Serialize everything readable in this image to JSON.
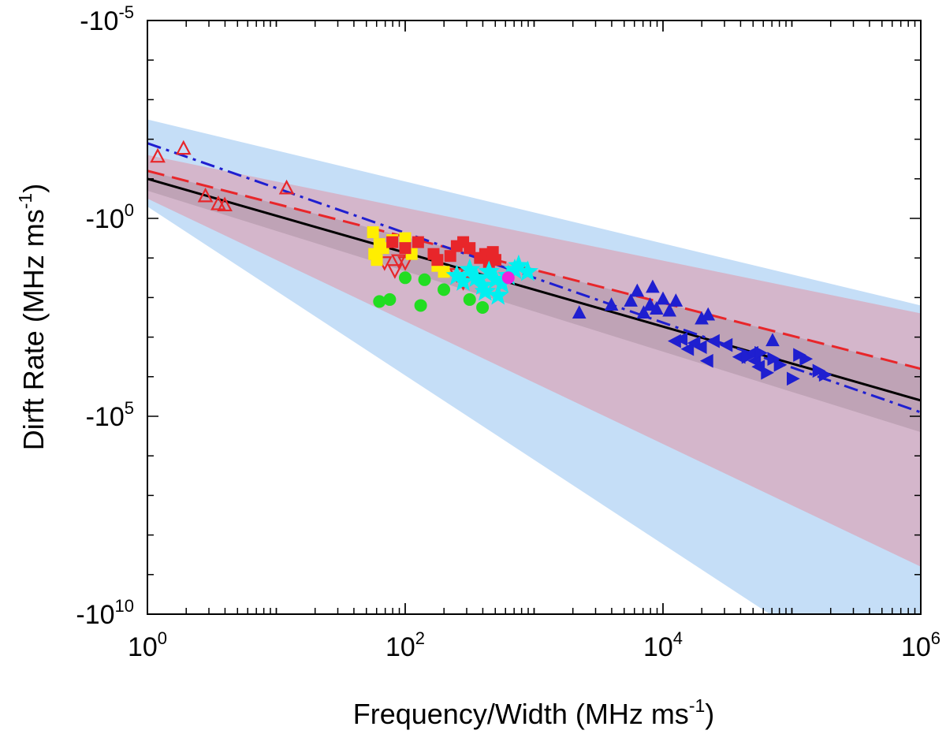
{
  "chart_data": {
    "type": "scatter",
    "xscale": "log",
    "yscale": "log",
    "xlim_log10": [
      0,
      6
    ],
    "ylim_log10": [
      -5,
      10
    ],
    "xlabel": {
      "text": "Frequency/Width (MHz ms",
      "sup": "-1",
      "close": ")"
    },
    "ylabel": {
      "text": "Dirft Rate (MHz ms",
      "sup": "-1",
      "close": ")"
    },
    "x_ticks": [
      {
        "log": 0,
        "base": "10",
        "exp": "0"
      },
      {
        "log": 2,
        "base": "10",
        "exp": "2"
      },
      {
        "log": 4,
        "base": "10",
        "exp": "4"
      },
      {
        "log": 6,
        "base": "10",
        "exp": "6"
      }
    ],
    "y_ticks": [
      {
        "log": -5,
        "base": "-10",
        "exp": "-5"
      },
      {
        "log": 0,
        "base": "-10",
        "exp": "0"
      },
      {
        "log": 5,
        "base": "-10",
        "exp": "5"
      },
      {
        "log": 10,
        "base": "-10",
        "exp": "10"
      }
    ],
    "bands": [
      {
        "name": "wide-interval-band",
        "color": "#c5def7",
        "upper": [
          [
            0,
            -2.5
          ],
          [
            6,
            2.2
          ]
        ],
        "lower": [
          [
            0,
            -0.3
          ],
          [
            6,
            12.5
          ]
        ]
      },
      {
        "name": "fit-interval-band",
        "color": "#d4b6cb",
        "upper": [
          [
            0,
            -1.6
          ],
          [
            6,
            2.4
          ]
        ],
        "lower": [
          [
            0,
            -0.5
          ],
          [
            6,
            8.8
          ]
        ]
      },
      {
        "name": "inner-band",
        "color": "#bfa3b6",
        "upper": [
          [
            0,
            -1.2
          ],
          [
            6,
            3.8
          ]
        ],
        "lower": [
          [
            0,
            -0.7
          ],
          [
            6,
            5.4
          ]
        ]
      }
    ],
    "fit_lines": [
      {
        "name": "black-solid-fit",
        "color": "#000000",
        "dash": "",
        "points": [
          [
            0,
            -1.0
          ],
          [
            6,
            4.6
          ]
        ]
      },
      {
        "name": "red-dashed-fit",
        "color": "#e8262a",
        "dash": "22 10",
        "points": [
          [
            0,
            -1.2
          ],
          [
            6,
            3.8
          ]
        ]
      },
      {
        "name": "blue-dashdot-fit",
        "color": "#1f1fd0",
        "dash": "18 7 4 7",
        "points": [
          [
            0,
            -1.9
          ],
          [
            6,
            4.9
          ]
        ]
      }
    ],
    "series": [
      {
        "name": "red-open-triangles",
        "marker": "triangle-up",
        "fill": "none",
        "stroke": "#e8262a",
        "points": [
          [
            0.08,
            -1.55
          ],
          [
            0.28,
            -1.75
          ],
          [
            0.45,
            -0.55
          ],
          [
            0.55,
            -0.35
          ],
          [
            0.6,
            -0.32
          ],
          [
            1.08,
            -0.75
          ]
        ]
      },
      {
        "name": "red-open-inverted-triangles",
        "marker": "triangle-down",
        "fill": "none",
        "stroke": "#e8262a",
        "points": [
          [
            1.84,
            1.1
          ],
          [
            1.92,
            1.3
          ],
          [
            2.0,
            1.1
          ],
          [
            2.4,
            1.4
          ],
          [
            2.45,
            1.6
          ],
          [
            1.95,
            1.05
          ]
        ]
      },
      {
        "name": "yellow-squares",
        "marker": "square",
        "fill": "#ffee00",
        "stroke": "#ffee00",
        "points": [
          [
            1.75,
            0.35
          ],
          [
            1.78,
            1.05
          ],
          [
            1.8,
            0.65
          ],
          [
            1.9,
            0.55
          ],
          [
            2.05,
            0.9
          ],
          [
            2.25,
            1.2
          ],
          [
            2.3,
            1.35
          ],
          [
            1.83,
            0.75
          ],
          [
            2.0,
            0.5
          ],
          [
            1.76,
            0.9
          ]
        ]
      },
      {
        "name": "red-filled-squares",
        "marker": "square",
        "fill": "#e8262a",
        "stroke": "#e8262a",
        "points": [
          [
            1.9,
            0.6
          ],
          [
            2.0,
            0.75
          ],
          [
            2.1,
            0.6
          ],
          [
            2.22,
            0.9
          ],
          [
            2.25,
            1.05
          ],
          [
            2.35,
            0.95
          ],
          [
            2.4,
            0.7
          ],
          [
            2.45,
            0.6
          ],
          [
            2.5,
            0.75
          ],
          [
            2.58,
            1.0
          ],
          [
            2.62,
            0.9
          ],
          [
            2.65,
            1.1
          ],
          [
            2.7,
            1.05
          ],
          [
            2.68,
            0.85
          ]
        ]
      },
      {
        "name": "green-circles",
        "marker": "circle",
        "fill": "#22dd22",
        "stroke": "#22dd22",
        "points": [
          [
            1.8,
            2.1
          ],
          [
            1.88,
            2.05
          ],
          [
            2.0,
            1.5
          ],
          [
            2.12,
            2.2
          ],
          [
            2.15,
            1.55
          ],
          [
            2.3,
            1.8
          ],
          [
            2.5,
            2.05
          ],
          [
            2.6,
            2.25
          ]
        ]
      },
      {
        "name": "cyan-stars",
        "marker": "star",
        "fill": "#00f0f0",
        "stroke": "#00f0f0",
        "points": [
          [
            2.4,
            1.45
          ],
          [
            2.45,
            1.6
          ],
          [
            2.5,
            1.3
          ],
          [
            2.55,
            1.5
          ],
          [
            2.6,
            1.7
          ],
          [
            2.62,
            1.85
          ],
          [
            2.65,
            1.35
          ],
          [
            2.7,
            1.55
          ],
          [
            2.72,
            1.95
          ],
          [
            2.75,
            1.65
          ],
          [
            2.8,
            1.45
          ],
          [
            2.85,
            1.3
          ],
          [
            2.88,
            1.2
          ],
          [
            2.95,
            1.35
          ]
        ]
      },
      {
        "name": "magenta-circle",
        "marker": "circle",
        "fill": "#ee22dd",
        "stroke": "#ee22dd",
        "points": [
          [
            2.8,
            1.5
          ]
        ]
      },
      {
        "name": "blue-filled-triangles",
        "marker": "triangle-up",
        "fill": "#1f1fd0",
        "stroke": "#1f1fd0",
        "points": [
          [
            3.35,
            2.4
          ],
          [
            3.6,
            2.2
          ],
          [
            3.75,
            2.1
          ],
          [
            3.8,
            1.85
          ],
          [
            3.85,
            2.4
          ],
          [
            3.9,
            2.2
          ],
          [
            3.92,
            1.75
          ],
          [
            3.95,
            2.3
          ],
          [
            4.0,
            2.05
          ],
          [
            4.05,
            2.35
          ],
          [
            4.1,
            2.1
          ],
          [
            4.3,
            2.55
          ],
          [
            4.35,
            2.45
          ],
          [
            4.85,
            3.1
          ]
        ]
      },
      {
        "name": "blue-left-triangles",
        "marker": "triangle-left",
        "fill": "#1f1fd0",
        "stroke": "#1f1fd0",
        "points": [
          [
            4.1,
            3.1
          ],
          [
            4.15,
            3.05
          ],
          [
            4.2,
            3.3
          ],
          [
            4.25,
            3.15
          ],
          [
            4.3,
            3.25
          ],
          [
            4.35,
            3.6
          ],
          [
            4.4,
            3.1
          ],
          [
            4.5,
            3.2
          ],
          [
            4.6,
            3.5
          ],
          [
            4.7,
            3.4
          ],
          [
            4.75,
            3.75
          ],
          [
            4.72,
            3.6
          ]
        ]
      },
      {
        "name": "blue-right-triangles",
        "marker": "triangle-right",
        "fill": "#1f1fd0",
        "stroke": "#1f1fd0",
        "points": [
          [
            4.65,
            3.5
          ],
          [
            4.75,
            3.4
          ],
          [
            4.8,
            3.9
          ],
          [
            4.85,
            3.55
          ],
          [
            4.9,
            3.7
          ],
          [
            5.0,
            4.05
          ],
          [
            5.1,
            3.55
          ],
          [
            5.2,
            3.85
          ],
          [
            5.25,
            3.95
          ],
          [
            5.05,
            3.45
          ]
        ]
      }
    ]
  }
}
